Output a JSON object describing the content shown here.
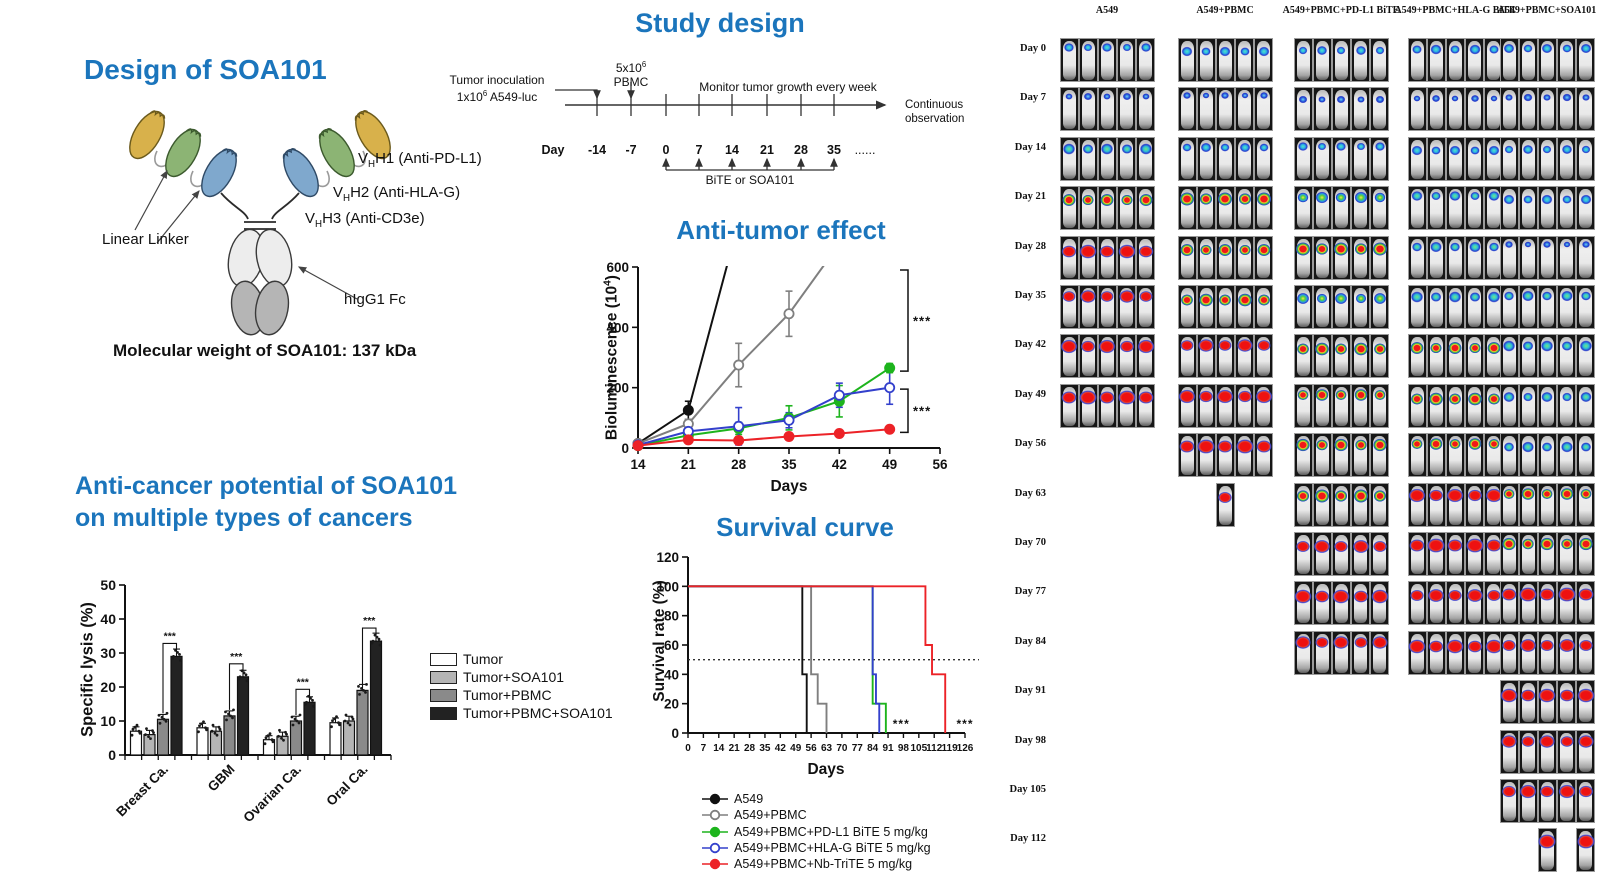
{
  "colors": {
    "title_blue": "#1B75BC",
    "black": "#111111",
    "gray": "#7f7f7f",
    "green": "#1db41d",
    "blue": "#3340cc",
    "red": "#ec2227"
  },
  "panels": {
    "design": {
      "title": "Design of SOA101",
      "domain_labels": [
        {
          "pre": "V",
          "sub": "H",
          "post": "H1 (Anti-PD-L1)"
        },
        {
          "pre": "V",
          "sub": "H",
          "post": "H2 (Anti-HLA-G)"
        },
        {
          "pre": "V",
          "sub": "H",
          "post": "H3 (Anti-CD3e)"
        }
      ],
      "linker_label": "Linear Linker",
      "fc_label": "hIgG1 Fc",
      "molecular_weight": "Molecular weight of SOA101: 137 kDa"
    },
    "study": {
      "title": "Study design",
      "inoculation_line1": "Tumor inoculation",
      "inoculation_line2": {
        "pre": "1x10",
        "sup": "6",
        "post": " A549-luc"
      },
      "pbmc_line1": {
        "pre": "5x10",
        "sup": "6",
        "post": ""
      },
      "pbmc_line2": "PBMC",
      "monitor": "Monitor tumor growth every week",
      "continuous_line1": "Continuous",
      "continuous_line2": "observation",
      "day_label": "Day",
      "days": [
        "-14",
        "-7",
        "0",
        "7",
        "14",
        "21",
        "28",
        "35"
      ],
      "ellipsis": "......",
      "dosing": "BiTE or SOA101"
    }
  },
  "chart_data": [
    {
      "id": "anti_tumor",
      "type": "line",
      "title": "Anti-tumor effect",
      "xlabel": "Days",
      "ylabel_parts": {
        "pre": "Bioluminescence (10",
        "sup": "4",
        "post": ")"
      },
      "xlim": [
        14,
        56
      ],
      "ylim": [
        0,
        600
      ],
      "xticks": [
        14,
        21,
        28,
        35,
        42,
        49,
        56
      ],
      "yticks": [
        0,
        200,
        400,
        600
      ],
      "series": [
        {
          "name": "A549",
          "color": "#111111",
          "marker": "filled",
          "points": [
            [
              14,
              15,
              10
            ],
            [
              21,
              125,
              30
            ]
          ],
          "extend": [
            27,
            660
          ]
        },
        {
          "name": "A549+PBMC",
          "color": "#7f7f7f",
          "marker": "open",
          "points": [
            [
              14,
              15,
              8
            ],
            [
              21,
              80,
              15
            ],
            [
              28,
              275,
              72
            ],
            [
              35,
              445,
              75
            ]
          ],
          "extend": [
            41.5,
            660
          ]
        },
        {
          "name": "A549+PBMC+PD-L1 BiTE 5 mg/kg",
          "color": "#1db41d",
          "marker": "filled",
          "points": [
            [
              14,
              8,
              5
            ],
            [
              21,
              42,
              15
            ],
            [
              28,
              65,
              20
            ],
            [
              35,
              100,
              40
            ],
            [
              42,
              155,
              52
            ],
            [
              49,
              265,
              15
            ]
          ]
        },
        {
          "name": "A549+PBMC+HLA-G BiTE 5 mg/kg",
          "color": "#3340cc",
          "marker": "open",
          "points": [
            [
              14,
              10,
              5
            ],
            [
              21,
              55,
              15
            ],
            [
              28,
              72,
              62
            ],
            [
              35,
              92,
              25
            ],
            [
              42,
              175,
              40
            ],
            [
              49,
              200,
              55
            ]
          ]
        },
        {
          "name": "A549+PBMC+Nb-TriTE 5 mg/kg",
          "color": "#ec2227",
          "marker": "filled",
          "points": [
            [
              14,
              8,
              4
            ],
            [
              21,
              27,
              8
            ],
            [
              28,
              25,
              12
            ],
            [
              35,
              38,
              12
            ],
            [
              42,
              48,
              10
            ],
            [
              49,
              62,
              8
            ]
          ]
        }
      ],
      "brackets": [
        {
          "y1": 590,
          "y2": 255,
          "label": "***"
        },
        {
          "y1": 195,
          "y2": 52,
          "label": "***"
        }
      ]
    },
    {
      "id": "survival",
      "type": "line",
      "title": "Survival curve",
      "xlabel": "Days",
      "ylabel": "Survival rate (%)",
      "xlim": [
        0,
        126
      ],
      "ylim": [
        0,
        120
      ],
      "xticks": [
        0,
        7,
        14,
        21,
        28,
        35,
        42,
        49,
        56,
        63,
        70,
        77,
        84,
        91,
        98,
        105,
        112,
        119,
        126
      ],
      "yticks": [
        0,
        20,
        40,
        60,
        80,
        100,
        120
      ],
      "median_line": 50,
      "series": [
        {
          "name": "A549",
          "color": "#111111",
          "marker": "filled",
          "steps": [
            [
              0,
              100
            ],
            [
              52,
              100
            ],
            [
              52,
              40
            ],
            [
              54,
              40
            ],
            [
              54,
              0
            ]
          ]
        },
        {
          "name": "A549+PBMC",
          "color": "#7f7f7f",
          "marker": "open",
          "steps": [
            [
              0,
              100
            ],
            [
              56,
              100
            ],
            [
              56,
              40
            ],
            [
              59,
              40
            ],
            [
              59,
              20
            ],
            [
              63,
              20
            ],
            [
              63,
              0
            ]
          ]
        },
        {
          "name": "A549+PBMC+PD-L1 BiTE 5 mg/kg",
          "color": "#1db41d",
          "marker": "filled",
          "steps": [
            [
              0,
              100
            ],
            [
              84,
              100
            ],
            [
              84,
              20
            ],
            [
              90,
              20
            ],
            [
              90,
              0
            ]
          ]
        },
        {
          "name": "A549+PBMC+HLA-G BiTE 5 mg/kg",
          "color": "#3340cc",
          "marker": "open",
          "steps": [
            [
              0,
              100
            ],
            [
              84,
              100
            ],
            [
              84,
              40
            ],
            [
              85.5,
              40
            ],
            [
              85.5,
              20
            ],
            [
              87,
              20
            ],
            [
              87,
              0
            ]
          ]
        },
        {
          "name": "A549+PBMC+Nb-TriTE 5 mg/kg",
          "color": "#ec2227",
          "marker": "filled",
          "steps": [
            [
              0,
              100
            ],
            [
              108,
              100
            ],
            [
              108,
              60
            ],
            [
              111,
              60
            ],
            [
              111,
              40
            ],
            [
              117,
              40
            ],
            [
              117,
              0
            ]
          ]
        }
      ],
      "annotations": [
        {
          "x": 97,
          "y": 6,
          "label": "***"
        },
        {
          "x": 126,
          "y": 6,
          "label": "***"
        }
      ]
    },
    {
      "id": "lysis",
      "type": "bar",
      "title_lines": [
        "Anti-cancer potential of SOA101",
        "on multiple types of cancers"
      ],
      "ylabel": "Specific lysis (%)",
      "xlabel": "",
      "categories": [
        "Breast Ca.",
        "GBM",
        "Ovarian Ca.",
        "Oral Ca."
      ],
      "ylim": [
        0,
        50
      ],
      "yticks": [
        0,
        10,
        20,
        30,
        40,
        50
      ],
      "series": [
        {
          "name": "Tumor",
          "color": "#ffffff",
          "values": [
            7,
            8,
            4.5,
            9.5
          ]
        },
        {
          "name": "Tumor+SOA101",
          "color": "#b5b5b5",
          "values": [
            6,
            7,
            5.5,
            10
          ]
        },
        {
          "name": "Tumor+PBMC",
          "color": "#8a8a8a",
          "values": [
            10.5,
            11.5,
            10,
            19
          ]
        },
        {
          "name": "Tumor+PBMC+SOA101",
          "color": "#222222",
          "values": [
            29,
            23,
            15.5,
            33.5
          ]
        }
      ],
      "sig_label": "***"
    }
  ],
  "mouse_grid": {
    "columns": [
      "A549",
      "A549+PBMC",
      "A549+PBMC+PD-L1 BiTE",
      "A549+PBMC+HLA-G BiTE",
      "A549+PBMC+SOA101"
    ],
    "rows": [
      {
        "day": "Day 0",
        "cells": [
          {
            "group": 0,
            "mice": 5,
            "level": 2
          },
          {
            "group": 1,
            "mice": 5,
            "level": 2
          },
          {
            "group": 2,
            "mice": 5,
            "level": 2
          },
          {
            "group": 3,
            "mice": 5,
            "level": 2
          },
          {
            "group": 4,
            "mice": 5,
            "level": 2
          }
        ]
      },
      {
        "day": "Day 7",
        "cells": [
          {
            "group": 0,
            "mice": 5,
            "level": 1
          },
          {
            "group": 1,
            "mice": 5,
            "level": 1
          },
          {
            "group": 2,
            "mice": 5,
            "level": 1
          },
          {
            "group": 3,
            "mice": 5,
            "level": 1
          },
          {
            "group": 4,
            "mice": 5,
            "level": 1
          }
        ]
      },
      {
        "day": "Day 14",
        "cells": [
          {
            "group": 0,
            "mice": 5,
            "level": 3
          },
          {
            "group": 1,
            "mice": 5,
            "level": 2
          },
          {
            "group": 2,
            "mice": 5,
            "level": 2
          },
          {
            "group": 3,
            "mice": 5,
            "level": 2
          },
          {
            "group": 4,
            "mice": 5,
            "level": 2
          }
        ]
      },
      {
        "day": "Day 21",
        "cells": [
          {
            "group": 0,
            "mice": 5,
            "level": 5
          },
          {
            "group": 1,
            "mice": 5,
            "level": 5
          },
          {
            "group": 2,
            "mice": 5,
            "level": 4
          },
          {
            "group": 3,
            "mice": 5,
            "level": 3
          },
          {
            "group": 4,
            "mice": 5,
            "level": 2
          }
        ]
      },
      {
        "day": "Day 28",
        "cells": [
          {
            "group": 0,
            "mice": 5,
            "level": 6
          },
          {
            "group": 1,
            "mice": 5,
            "level": 5
          },
          {
            "group": 2,
            "mice": 5,
            "level": 5
          },
          {
            "group": 3,
            "mice": 5,
            "level": 3
          },
          {
            "group": 4,
            "mice": 5,
            "level": 1
          }
        ]
      },
      {
        "day": "Day 35",
        "cells": [
          {
            "group": 0,
            "mice": 5,
            "level": 6
          },
          {
            "group": 1,
            "mice": 5,
            "level": 5
          },
          {
            "group": 2,
            "mice": 5,
            "level": 4
          },
          {
            "group": 3,
            "mice": 5,
            "level": 3
          },
          {
            "group": 4,
            "mice": 5,
            "level": 3
          }
        ]
      },
      {
        "day": "Day 42",
        "cells": [
          {
            "group": 0,
            "mice": 5,
            "level": 6
          },
          {
            "group": 1,
            "mice": 5,
            "level": 6
          },
          {
            "group": 2,
            "mice": 5,
            "level": 5
          },
          {
            "group": 3,
            "mice": 5,
            "level": 5
          },
          {
            "group": 4,
            "mice": 5,
            "level": 3
          }
        ]
      },
      {
        "day": "Day 49",
        "cells": [
          {
            "group": 0,
            "mice": 5,
            "level": 6
          },
          {
            "group": 1,
            "mice": 5,
            "level": 6
          },
          {
            "group": 2,
            "mice": 5,
            "level": 5
          },
          {
            "group": 3,
            "mice": 5,
            "level": 5
          },
          {
            "group": 4,
            "mice": 5,
            "level": 3
          }
        ]
      },
      {
        "day": "Day 56",
        "cells": [
          {
            "group": 1,
            "mice": 5,
            "level": 6
          },
          {
            "group": 2,
            "mice": 5,
            "level": 5
          },
          {
            "group": 3,
            "mice": 5,
            "level": 5
          },
          {
            "group": 4,
            "mice": 5,
            "level": 3
          }
        ]
      },
      {
        "day": "Day 63",
        "cells": [
          {
            "group": 1,
            "positions": [
              3
            ],
            "level": 6
          },
          {
            "group": 2,
            "mice": 5,
            "level": 5
          },
          {
            "group": 3,
            "mice": 5,
            "level": 6
          },
          {
            "group": 4,
            "mice": 5,
            "level": 5
          }
        ]
      },
      {
        "day": "Day 70",
        "cells": [
          {
            "group": 2,
            "mice": 5,
            "level": 6
          },
          {
            "group": 3,
            "mice": 5,
            "level": 6
          },
          {
            "group": 4,
            "mice": 5,
            "level": 5
          }
        ]
      },
      {
        "day": "Day 77",
        "cells": [
          {
            "group": 2,
            "mice": 5,
            "level": 6
          },
          {
            "group": 3,
            "mice": 5,
            "level": 6
          },
          {
            "group": 4,
            "mice": 5,
            "level": 6
          }
        ]
      },
      {
        "day": "Day 84",
        "cells": [
          {
            "group": 2,
            "mice": 5,
            "level": 6
          },
          {
            "group": 3,
            "mice": 5,
            "level": 6
          },
          {
            "group": 4,
            "mice": 5,
            "level": 6
          }
        ]
      },
      {
        "day": "Day 91",
        "cells": [
          {
            "group": 4,
            "mice": 5,
            "level": 6
          }
        ]
      },
      {
        "day": "Day 98",
        "cells": [
          {
            "group": 4,
            "mice": 5,
            "level": 6
          }
        ]
      },
      {
        "day": "Day 105",
        "cells": [
          {
            "group": 4,
            "mice": 5,
            "level": 6
          }
        ]
      },
      {
        "day": "Day 112",
        "cells": [
          {
            "group": 4,
            "positions": [
              3,
              5
            ],
            "level": 6
          }
        ]
      }
    ]
  }
}
